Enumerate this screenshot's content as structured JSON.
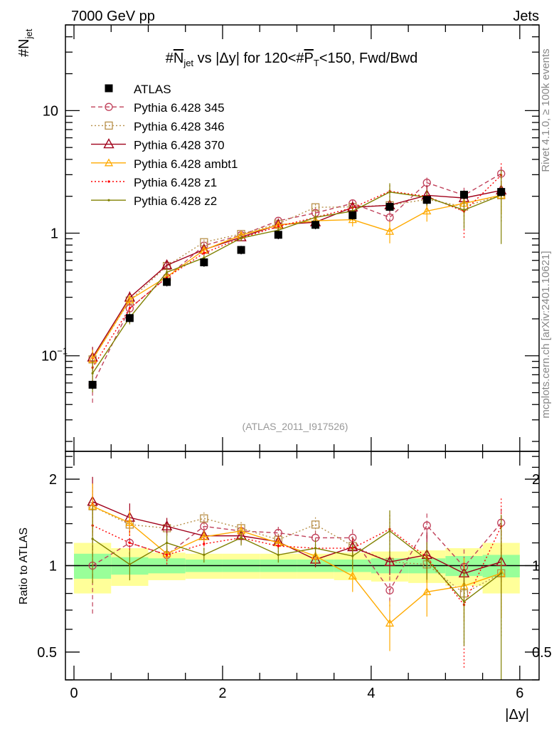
{
  "header": {
    "left": "7000 GeV pp",
    "right": "Jets"
  },
  "side_text": {
    "rivet": "Rivet 4.1.0, ≥ 100k events",
    "mcplots": "mcplots.cern.ch [arXiv:2401.10621]"
  },
  "watermark": "(ATLAS_2011_I917526)",
  "chart_data": {
    "type": "line",
    "title": "#N̅jet vs |Δy| for 120<#P̅T<150, Fwd/Bwd",
    "title_parts": {
      "pre": "#",
      "n": "N",
      "n_sub": "jet",
      "mid": " vs |Δy| for 120<#",
      "p": "P",
      "p_sub": "T",
      "post": "<150, Fwd/Bwd"
    },
    "ylabel": {
      "main": "#N",
      "sub": "jet"
    },
    "ratio_ylabel": "Ratio to ATLAS",
    "xlabel": "|Δy|",
    "xlim": [
      -0.115,
      6.26
    ],
    "ylim": [
      0.0166,
      50
    ],
    "yscale": "log",
    "ratio_ylim": [
      0.4,
      2.5
    ],
    "ratio_yscale": "log",
    "x_ticks": [
      "0",
      "2",
      "4",
      "6"
    ],
    "y_ticks": [
      {
        "v": 10,
        "label": "10"
      },
      {
        "v": 1,
        "label": "1"
      },
      {
        "v": 0.1,
        "label": "10",
        "exp": "−1"
      }
    ],
    "ratio_ticks": [
      {
        "v": 2,
        "label": "2"
      },
      {
        "v": 1,
        "label": "1"
      },
      {
        "v": 0.5,
        "label": "0.5"
      }
    ],
    "legend_placement": "top-left",
    "x": [
      0.25,
      0.75,
      1.25,
      1.75,
      2.25,
      2.75,
      3.25,
      3.75,
      4.25,
      4.75,
      5.25,
      5.75
    ],
    "data": {
      "name": "ATLAS",
      "values": [
        0.058,
        0.203,
        0.4,
        0.578,
        0.73,
        0.97,
        1.17,
        1.4,
        1.64,
        1.87,
        2.06,
        2.17
      ],
      "band_inner": [
        0.1,
        0.07,
        0.06,
        0.05,
        0.05,
        0.05,
        0.05,
        0.05,
        0.06,
        0.06,
        0.08,
        0.09
      ],
      "band_outer": [
        0.2,
        0.15,
        0.11,
        0.1,
        0.1,
        0.1,
        0.1,
        0.11,
        0.12,
        0.13,
        0.15,
        0.2
      ]
    },
    "series": [
      {
        "name": "Pythia 6.428 345",
        "color": "#c0405a",
        "dash": "6,4",
        "marker": "circle",
        "ratio": [
          1.0,
          1.2,
          1.09,
          1.37,
          1.32,
          1.3,
          1.25,
          1.25,
          0.82,
          1.38,
          0.99,
          1.41
        ],
        "err": [
          0.32,
          0.1,
          0.06,
          0.05,
          0.05,
          0.05,
          0.06,
          0.07,
          0.12,
          0.1,
          0.15,
          0.12
        ]
      },
      {
        "name": "Pythia 6.428 346",
        "color": "#b8904a",
        "dash": "2,3",
        "marker": "square",
        "ratio": [
          1.61,
          1.39,
          1.35,
          1.46,
          1.35,
          1.23,
          1.39,
          1.17,
          1.03,
          1.01,
          0.8,
          0.94
        ],
        "err": [
          0.2,
          0.1,
          0.06,
          0.05,
          0.05,
          0.05,
          0.06,
          0.07,
          0.12,
          0.1,
          0.18,
          0.4
        ]
      },
      {
        "name": "Pythia 6.428 370",
        "color": "#a0001a",
        "dash": "",
        "marker": "triangle",
        "ratio": [
          1.67,
          1.47,
          1.37,
          1.27,
          1.27,
          1.21,
          1.05,
          1.16,
          1.03,
          1.09,
          0.94,
          1.03
        ],
        "err": [
          0.22,
          0.12,
          0.07,
          0.05,
          0.05,
          0.05,
          0.06,
          0.07,
          0.1,
          0.2,
          0.1,
          0.15
        ]
      },
      {
        "name": "Pythia 6.428 ambt1",
        "color": "#ffaa00",
        "dash": "",
        "marker": "triangle-small",
        "ratio": [
          1.61,
          1.41,
          1.1,
          1.26,
          1.32,
          1.2,
          1.08,
          0.92,
          0.63,
          0.81,
          0.85,
          0.94
        ],
        "err": [
          0.2,
          0.1,
          0.06,
          0.05,
          0.05,
          0.05,
          0.06,
          0.12,
          0.2,
          0.18,
          0.25,
          0.3
        ]
      },
      {
        "name": "Pythia 6.428 z1",
        "color": "#ff0000",
        "dash": "2,3",
        "marker": "dot",
        "ratio": [
          1.38,
          1.2,
          1.09,
          1.19,
          1.25,
          1.17,
          1.15,
          1.15,
          1.34,
          1.07,
          0.73,
          1.37
        ],
        "err": [
          0.2,
          0.1,
          0.08,
          0.05,
          0.05,
          0.05,
          0.06,
          0.07,
          0.12,
          0.12,
          0.4,
          0.25
        ]
      },
      {
        "name": "Pythia 6.428 z2",
        "color": "#808000",
        "dash": "",
        "marker": "dot",
        "ratio": [
          1.24,
          1.01,
          1.2,
          1.09,
          1.25,
          1.09,
          1.15,
          1.08,
          1.32,
          1.05,
          0.75,
          0.94
        ],
        "err": [
          0.3,
          0.12,
          0.08,
          0.06,
          0.06,
          0.06,
          0.07,
          0.1,
          0.18,
          0.15,
          0.3,
          0.6
        ]
      }
    ]
  }
}
